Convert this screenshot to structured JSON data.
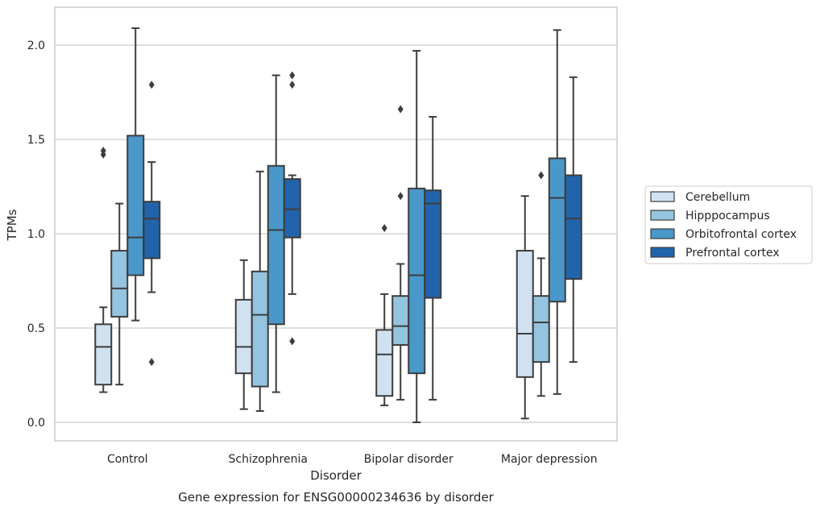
{
  "chart_data": {
    "type": "box",
    "caption": "Gene expression for ENSG00000234636 by disorder",
    "xlabel": "Disorder",
    "ylabel": "TPMs",
    "ylim": [
      -0.1,
      2.2
    ],
    "yticks": [
      0.0,
      0.5,
      1.0,
      1.5,
      2.0
    ],
    "ytick_labels": [
      "0.0",
      "0.5",
      "1.0",
      "1.5",
      "2.0"
    ],
    "grid": "horizontal",
    "legend_position": "right",
    "categories": [
      "Control",
      "Schizophrenia",
      "Bipolar disorder",
      "Major depression"
    ],
    "series": [
      {
        "name": "Cerebellum",
        "color": "#d0e1f2",
        "boxes": [
          {
            "whislo": 0.16,
            "q1": 0.2,
            "med": 0.4,
            "q3": 0.52,
            "whishi": 0.61,
            "fliers": [
              1.42,
              1.44
            ]
          },
          {
            "whislo": 0.07,
            "q1": 0.26,
            "med": 0.4,
            "q3": 0.65,
            "whishi": 0.86,
            "fliers": []
          },
          {
            "whislo": 0.09,
            "q1": 0.14,
            "med": 0.36,
            "q3": 0.49,
            "whishi": 0.68,
            "fliers": [
              1.03
            ]
          },
          {
            "whislo": 0.02,
            "q1": 0.24,
            "med": 0.47,
            "q3": 0.91,
            "whishi": 1.2,
            "fliers": []
          }
        ]
      },
      {
        "name": "Hipppocampus",
        "color": "#94c4df",
        "boxes": [
          {
            "whislo": 0.2,
            "q1": 0.56,
            "med": 0.71,
            "q3": 0.91,
            "whishi": 1.16,
            "fliers": []
          },
          {
            "whislo": 0.06,
            "q1": 0.19,
            "med": 0.57,
            "q3": 0.8,
            "whishi": 1.33,
            "fliers": []
          },
          {
            "whislo": 0.12,
            "q1": 0.41,
            "med": 0.51,
            "q3": 0.67,
            "whishi": 0.84,
            "fliers": [
              1.2,
              1.66
            ]
          },
          {
            "whislo": 0.14,
            "q1": 0.32,
            "med": 0.53,
            "q3": 0.67,
            "whishi": 0.87,
            "fliers": [
              1.31
            ]
          }
        ]
      },
      {
        "name": "Orbitofrontal cortex",
        "color": "#4a98c9",
        "boxes": [
          {
            "whislo": 0.54,
            "q1": 0.78,
            "med": 0.98,
            "q3": 1.52,
            "whishi": 2.09,
            "fliers": []
          },
          {
            "whislo": 0.16,
            "q1": 0.52,
            "med": 1.02,
            "q3": 1.36,
            "whishi": 1.84,
            "fliers": []
          },
          {
            "whislo": 0.0,
            "q1": 0.26,
            "med": 0.78,
            "q3": 1.24,
            "whishi": 1.97,
            "fliers": []
          },
          {
            "whislo": 0.15,
            "q1": 0.64,
            "med": 1.19,
            "q3": 1.4,
            "whishi": 2.08,
            "fliers": []
          }
        ]
      },
      {
        "name": "Prefrontal cortex",
        "color": "#2164ab",
        "boxes": [
          {
            "whislo": 0.69,
            "q1": 0.87,
            "med": 1.08,
            "q3": 1.17,
            "whishi": 1.38,
            "fliers": [
              0.32,
              1.79
            ]
          },
          {
            "whislo": 0.68,
            "q1": 0.98,
            "med": 1.13,
            "q3": 1.29,
            "whishi": 1.31,
            "fliers": [
              0.43,
              1.79,
              1.84
            ]
          },
          {
            "whislo": 0.12,
            "q1": 0.66,
            "med": 1.16,
            "q3": 1.23,
            "whishi": 1.62,
            "fliers": []
          },
          {
            "whislo": 0.32,
            "q1": 0.76,
            "med": 1.08,
            "q3": 1.31,
            "whishi": 1.83,
            "fliers": []
          }
        ]
      }
    ]
  }
}
